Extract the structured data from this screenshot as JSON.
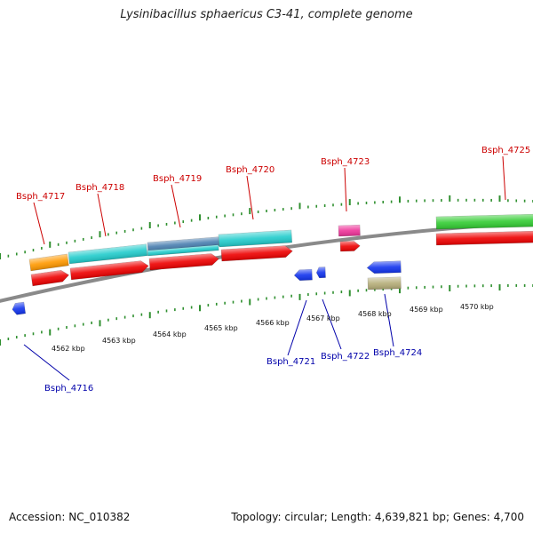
{
  "title": "Lysinibacillus sphaericus C3-41, complete genome",
  "footer": {
    "accession": "Accession: NC_010382",
    "summary": "Topology: circular; Length: 4,639,821 bp; Genes: 4,700"
  },
  "colors": {
    "backbone": "#8a8a8a",
    "tick": "#2f8f2f",
    "label_top": "#cc0000",
    "label_bottom": "#0000aa",
    "gene_red": "#ee0000",
    "gene_cyan": "#22cccc",
    "gene_orange": "#ff9900",
    "gene_steel": "#4a7fb0",
    "gene_pink": "#ee3399",
    "gene_green": "#33cc33",
    "gene_blue": "#1133ee",
    "gene_khaki": "#b5ad78"
  },
  "axis_labels": [
    "4562 kbp",
    "4563 kbp",
    "4564 kbp",
    "4565 kbp",
    "4566 kbp",
    "4567 kbp",
    "4568 kbp",
    "4569 kbp",
    "4570 kbp"
  ],
  "gene_labels_top": [
    "Bsph_4717",
    "Bsph_4718",
    "Bsph_4719",
    "Bsph_4720",
    "Bsph_4723",
    "Bsph_4725"
  ],
  "gene_labels_bottom": [
    "Bsph_4716",
    "Bsph_4721",
    "Bsph_4722",
    "Bsph_4724"
  ]
}
